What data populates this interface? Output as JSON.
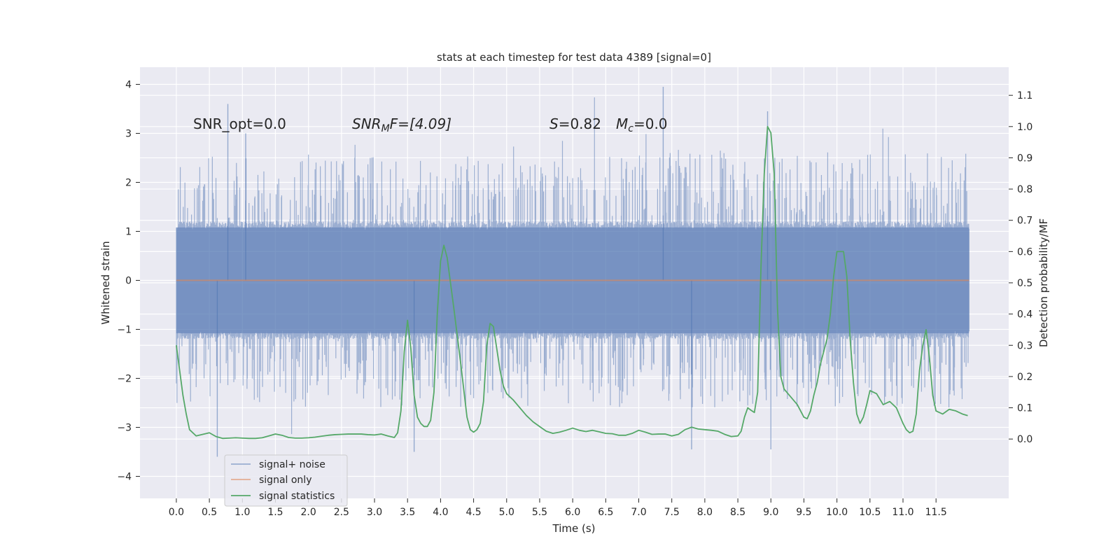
{
  "chart_data": {
    "type": "line",
    "title": "stats at each timestep for test data 4389 [signal=0]",
    "xlabel": "Time (s)",
    "ylabel_left": "Whitened strain",
    "ylabel_right": "Detection probability/MF",
    "xlim": [
      -0.55,
      12.6
    ],
    "ylim_left": [
      -4.45,
      4.35
    ],
    "ylim_right": [
      -0.19,
      1.19
    ],
    "x_ticks": [
      "0.0",
      "0.5",
      "1.0",
      "1.5",
      "2.0",
      "2.5",
      "3.0",
      "3.5",
      "4.0",
      "4.5",
      "5.0",
      "5.5",
      "6.0",
      "6.5",
      "7.0",
      "7.5",
      "8.0",
      "8.5",
      "9.0",
      "9.5",
      "10.0",
      "10.5",
      "11.0",
      "11.5"
    ],
    "y_ticks_left": [
      "−4",
      "−3",
      "−2",
      "−1",
      "0",
      "1",
      "2",
      "3",
      "4"
    ],
    "y_ticks_right": [
      "0.0",
      "0.1",
      "0.2",
      "0.3",
      "0.4",
      "0.5",
      "0.6",
      "0.7",
      "0.8",
      "0.9",
      "1.0",
      "1.1"
    ],
    "grid": true,
    "annotations": {
      "snr_opt": "SNR_opt=0.0",
      "snr_mf_main": "SNR",
      "snr_mf_sub": "M",
      "snr_mf_rest": "F=[4.09]",
      "s_main": "S",
      "s_rest": "=0.82",
      "mc_main": "M",
      "mc_sub": "c",
      "mc_rest": "=0.0"
    },
    "legend": {
      "position": "lower-left",
      "entries": [
        "signal+ noise",
        "signal only",
        "signal statistics"
      ]
    },
    "series": [
      {
        "name": "signal+ noise",
        "axis": "left",
        "color": "#4c72b0",
        "t_range": [
          0.0,
          12.0
        ],
        "sample_rate": 2048,
        "noise_core_band": [
          -1.2,
          1.2
        ],
        "spike_max": 3.95,
        "spike_min": -3.6,
        "notable_spikes": [
          [
            0.78,
            3.6
          ],
          [
            1.05,
            3.0
          ],
          [
            7.37,
            3.95
          ],
          [
            8.95,
            3.45
          ],
          [
            0.62,
            -3.6
          ],
          [
            3.6,
            -3.5
          ],
          [
            9.0,
            -3.45
          ],
          [
            7.8,
            -3.45
          ]
        ]
      },
      {
        "name": "signal only",
        "axis": "left",
        "color": "#dd8452",
        "t_range": [
          0.0,
          12.0
        ],
        "value": 0.0
      },
      {
        "name": "signal statistics",
        "axis": "right",
        "color": "#55a868",
        "points": [
          [
            0.0,
            0.3
          ],
          [
            0.05,
            0.22
          ],
          [
            0.1,
            0.14
          ],
          [
            0.15,
            0.08
          ],
          [
            0.2,
            0.03
          ],
          [
            0.3,
            0.01
          ],
          [
            0.4,
            0.015
          ],
          [
            0.5,
            0.02
          ],
          [
            0.6,
            0.008
          ],
          [
            0.7,
            0.002
          ],
          [
            0.8,
            0.003
          ],
          [
            0.9,
            0.004
          ],
          [
            1.0,
            0.003
          ],
          [
            1.1,
            0.002
          ],
          [
            1.2,
            0.002
          ],
          [
            1.3,
            0.004
          ],
          [
            1.4,
            0.01
          ],
          [
            1.5,
            0.016
          ],
          [
            1.6,
            0.012
          ],
          [
            1.7,
            0.005
          ],
          [
            1.8,
            0.003
          ],
          [
            1.9,
            0.003
          ],
          [
            2.0,
            0.004
          ],
          [
            2.1,
            0.006
          ],
          [
            2.2,
            0.009
          ],
          [
            2.3,
            0.012
          ],
          [
            2.4,
            0.014
          ],
          [
            2.5,
            0.015
          ],
          [
            2.6,
            0.016
          ],
          [
            2.7,
            0.016
          ],
          [
            2.8,
            0.016
          ],
          [
            2.9,
            0.014
          ],
          [
            3.0,
            0.013
          ],
          [
            3.1,
            0.016
          ],
          [
            3.2,
            0.01
          ],
          [
            3.3,
            0.005
          ],
          [
            3.35,
            0.02
          ],
          [
            3.4,
            0.09
          ],
          [
            3.45,
            0.28
          ],
          [
            3.5,
            0.38
          ],
          [
            3.55,
            0.29
          ],
          [
            3.6,
            0.14
          ],
          [
            3.65,
            0.07
          ],
          [
            3.7,
            0.05
          ],
          [
            3.75,
            0.04
          ],
          [
            3.8,
            0.04
          ],
          [
            3.85,
            0.06
          ],
          [
            3.9,
            0.15
          ],
          [
            3.95,
            0.4
          ],
          [
            4.0,
            0.57
          ],
          [
            4.05,
            0.62
          ],
          [
            4.1,
            0.58
          ],
          [
            4.2,
            0.42
          ],
          [
            4.3,
            0.25
          ],
          [
            4.35,
            0.16
          ],
          [
            4.4,
            0.07
          ],
          [
            4.45,
            0.03
          ],
          [
            4.5,
            0.022
          ],
          [
            4.55,
            0.03
          ],
          [
            4.6,
            0.05
          ],
          [
            4.65,
            0.12
          ],
          [
            4.7,
            0.3
          ],
          [
            4.75,
            0.37
          ],
          [
            4.8,
            0.36
          ],
          [
            4.85,
            0.29
          ],
          [
            4.9,
            0.22
          ],
          [
            4.95,
            0.17
          ],
          [
            5.0,
            0.145
          ],
          [
            5.1,
            0.125
          ],
          [
            5.2,
            0.1
          ],
          [
            5.3,
            0.075
          ],
          [
            5.4,
            0.055
          ],
          [
            5.5,
            0.04
          ],
          [
            5.6,
            0.025
          ],
          [
            5.7,
            0.018
          ],
          [
            5.8,
            0.022
          ],
          [
            5.9,
            0.028
          ],
          [
            6.0,
            0.035
          ],
          [
            6.1,
            0.028
          ],
          [
            6.2,
            0.024
          ],
          [
            6.3,
            0.028
          ],
          [
            6.4,
            0.023
          ],
          [
            6.5,
            0.018
          ],
          [
            6.6,
            0.017
          ],
          [
            6.7,
            0.012
          ],
          [
            6.8,
            0.012
          ],
          [
            6.9,
            0.018
          ],
          [
            7.0,
            0.028
          ],
          [
            7.1,
            0.022
          ],
          [
            7.2,
            0.015
          ],
          [
            7.3,
            0.016
          ],
          [
            7.4,
            0.016
          ],
          [
            7.5,
            0.01
          ],
          [
            7.6,
            0.015
          ],
          [
            7.7,
            0.03
          ],
          [
            7.8,
            0.038
          ],
          [
            7.9,
            0.032
          ],
          [
            8.0,
            0.03
          ],
          [
            8.1,
            0.028
          ],
          [
            8.2,
            0.025
          ],
          [
            8.3,
            0.015
          ],
          [
            8.4,
            0.008
          ],
          [
            8.5,
            0.01
          ],
          [
            8.55,
            0.025
          ],
          [
            8.6,
            0.07
          ],
          [
            8.65,
            0.1
          ],
          [
            8.7,
            0.092
          ],
          [
            8.75,
            0.085
          ],
          [
            8.8,
            0.15
          ],
          [
            8.85,
            0.55
          ],
          [
            8.9,
            0.85
          ],
          [
            8.95,
            1.0
          ],
          [
            9.0,
            0.98
          ],
          [
            9.05,
            0.85
          ],
          [
            9.1,
            0.42
          ],
          [
            9.15,
            0.2
          ],
          [
            9.2,
            0.16
          ],
          [
            9.3,
            0.135
          ],
          [
            9.4,
            0.11
          ],
          [
            9.5,
            0.07
          ],
          [
            9.55,
            0.065
          ],
          [
            9.6,
            0.09
          ],
          [
            9.65,
            0.14
          ],
          [
            9.7,
            0.18
          ],
          [
            9.75,
            0.24
          ],
          [
            9.8,
            0.28
          ],
          [
            9.85,
            0.32
          ],
          [
            9.9,
            0.4
          ],
          [
            9.95,
            0.52
          ],
          [
            10.0,
            0.6
          ],
          [
            10.05,
            0.6
          ],
          [
            10.1,
            0.6
          ],
          [
            10.15,
            0.52
          ],
          [
            10.2,
            0.32
          ],
          [
            10.25,
            0.18
          ],
          [
            10.3,
            0.08
          ],
          [
            10.35,
            0.05
          ],
          [
            10.4,
            0.07
          ],
          [
            10.45,
            0.11
          ],
          [
            10.5,
            0.155
          ],
          [
            10.6,
            0.145
          ],
          [
            10.7,
            0.11
          ],
          [
            10.8,
            0.12
          ],
          [
            10.9,
            0.1
          ],
          [
            11.0,
            0.05
          ],
          [
            11.05,
            0.03
          ],
          [
            11.1,
            0.02
          ],
          [
            11.15,
            0.025
          ],
          [
            11.2,
            0.08
          ],
          [
            11.25,
            0.22
          ],
          [
            11.3,
            0.3
          ],
          [
            11.35,
            0.35
          ],
          [
            11.4,
            0.26
          ],
          [
            11.45,
            0.14
          ],
          [
            11.5,
            0.09
          ],
          [
            11.6,
            0.08
          ],
          [
            11.7,
            0.095
          ],
          [
            11.8,
            0.09
          ],
          [
            11.9,
            0.08
          ],
          [
            11.98,
            0.075
          ]
        ]
      }
    ]
  }
}
